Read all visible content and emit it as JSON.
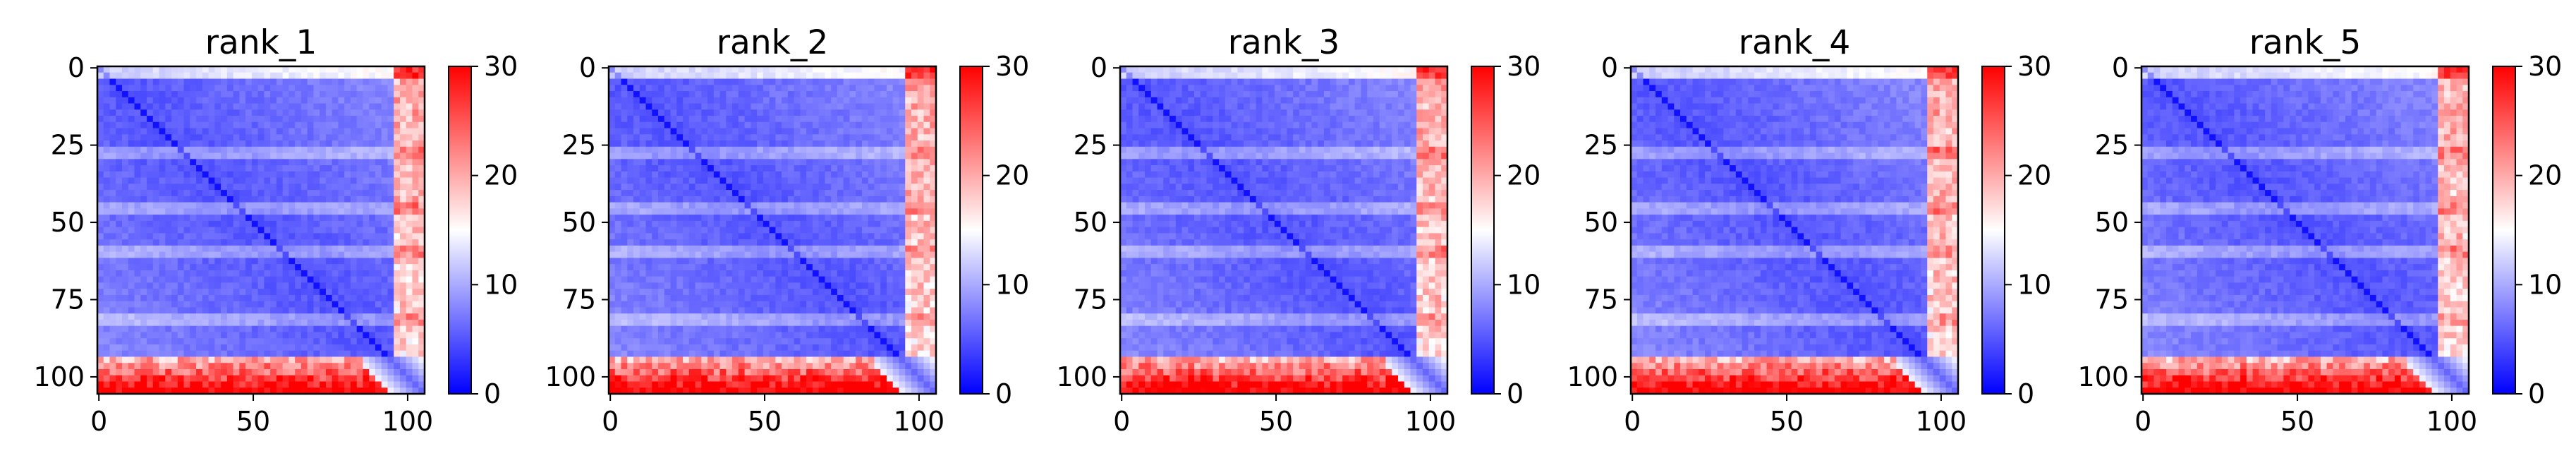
{
  "chart_data": [
    {
      "type": "heatmap",
      "title": "rank_1",
      "n": 106,
      "x_ticks": [
        0,
        50,
        100
      ],
      "y_ticks": [
        0,
        25,
        50,
        75,
        100
      ],
      "colorbar": {
        "range": [
          0,
          30
        ],
        "ticks": [
          0,
          10,
          20,
          30
        ],
        "colormap": "bwr"
      }
    },
    {
      "type": "heatmap",
      "title": "rank_2",
      "n": 106,
      "x_ticks": [
        0,
        50,
        100
      ],
      "y_ticks": [
        0,
        25,
        50,
        75,
        100
      ],
      "colorbar": {
        "range": [
          0,
          30
        ],
        "ticks": [
          0,
          10,
          20,
          30
        ],
        "colormap": "bwr"
      }
    },
    {
      "type": "heatmap",
      "title": "rank_3",
      "n": 106,
      "x_ticks": [
        0,
        50,
        100
      ],
      "y_ticks": [
        0,
        25,
        50,
        75,
        100
      ],
      "colorbar": {
        "range": [
          0,
          30
        ],
        "ticks": [
          0,
          10,
          20,
          30
        ],
        "colormap": "bwr"
      }
    },
    {
      "type": "heatmap",
      "title": "rank_4",
      "n": 106,
      "x_ticks": [
        0,
        50,
        100
      ],
      "y_ticks": [
        0,
        25,
        50,
        75,
        100
      ],
      "colorbar": {
        "range": [
          0,
          30
        ],
        "ticks": [
          0,
          10,
          20,
          30
        ],
        "colormap": "bwr"
      }
    },
    {
      "type": "heatmap",
      "title": "rank_5",
      "n": 106,
      "x_ticks": [
        0,
        50,
        100
      ],
      "y_ticks": [
        0,
        25,
        50,
        75,
        100
      ],
      "colorbar": {
        "range": [
          0,
          30
        ],
        "ticks": [
          0,
          10,
          20,
          30
        ],
        "colormap": "bwr"
      }
    }
  ],
  "colors": {
    "low": "#0000ff",
    "mid": "#ffffff",
    "high": "#ff0000"
  }
}
